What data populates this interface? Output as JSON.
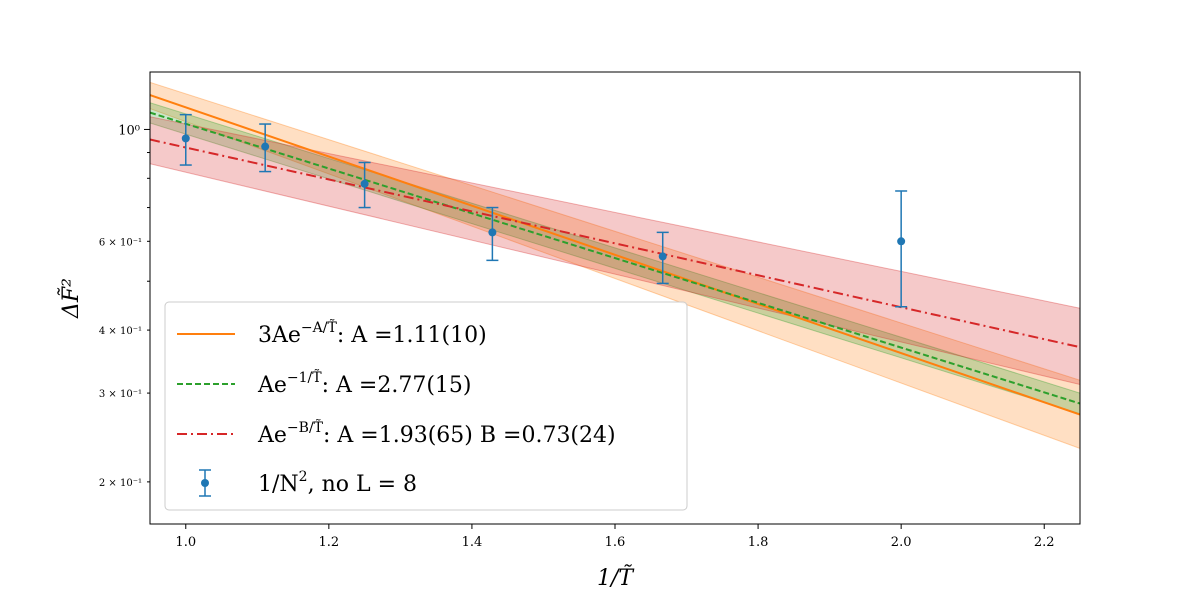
{
  "chart_data": {
    "type": "line",
    "title": "",
    "xlabel": "1/T̃",
    "ylabel": "ΔF̃²",
    "xlim": [
      0.95,
      2.25
    ],
    "ylim": [
      0.165,
      1.3
    ],
    "yscale": "log",
    "x_ticks": [
      {
        "value": 1.0,
        "label": "1.0"
      },
      {
        "value": 1.2,
        "label": "1.2"
      },
      {
        "value": 1.4,
        "label": "1.4"
      },
      {
        "value": 1.6,
        "label": "1.6"
      },
      {
        "value": 1.8,
        "label": "1.8"
      },
      {
        "value": 2.0,
        "label": "2.0"
      },
      {
        "value": 2.2,
        "label": "2.2"
      }
    ],
    "y_major_ticks": [
      {
        "value": 1.0,
        "label": "10⁰"
      }
    ],
    "y_minor_ticks": [
      {
        "value": 0.2,
        "label": "2 × 10⁻¹"
      },
      {
        "value": 0.3,
        "label": "3 × 10⁻¹"
      },
      {
        "value": 0.4,
        "label": "4 × 10⁻¹"
      },
      {
        "value": 0.5,
        "label": ""
      },
      {
        "value": 0.6,
        "label": "6 × 10⁻¹"
      },
      {
        "value": 0.7,
        "label": ""
      },
      {
        "value": 0.8,
        "label": ""
      },
      {
        "value": 0.9,
        "label": ""
      }
    ],
    "series": [
      {
        "name": "fit-3Aexp",
        "label": "3Ae^{−A/T̃}: A =1.11(10)",
        "color": "#ff7f0e",
        "style": "solid",
        "x": [
          0.95,
          2.25
        ],
        "y": [
          1.17,
          0.272
        ],
        "band_lower": [
          1.1,
          0.233
        ],
        "band_upper": [
          1.24,
          0.318
        ]
      },
      {
        "name": "fit-Aexp-1",
        "label": "Ae^{−1/T̃}: A =2.77(15)",
        "color": "#2ca02c",
        "style": "dashed",
        "x": [
          0.95,
          2.25
        ],
        "y": [
          1.08,
          0.286
        ],
        "band_lower": [
          1.03,
          0.273
        ],
        "band_upper": [
          1.13,
          0.3
        ]
      },
      {
        "name": "fit-AexpB",
        "label": "Ae^{−B/T̃}: A =1.93(65) B =0.73(24)",
        "color": "#d62728",
        "style": "dashdot",
        "x": [
          0.95,
          2.25
        ],
        "y": [
          0.955,
          0.37
        ],
        "band_lower": [
          0.855,
          0.312
        ],
        "band_upper": [
          1.06,
          0.442
        ]
      },
      {
        "name": "data-1-over-N2",
        "label": "1/N², no L = 8",
        "color": "#1f77b4",
        "style": "errorbar",
        "x": [
          1.0,
          1.111,
          1.25,
          1.4286,
          1.6667,
          2.0
        ],
        "y": [
          0.96,
          0.925,
          0.78,
          0.625,
          0.56,
          0.6
        ],
        "yerr": [
          0.11,
          0.1,
          0.08,
          0.075,
          0.065,
          0.155
        ]
      }
    ],
    "legend": {
      "position": "lower-left",
      "entries": [
        {
          "prefix": "3Ae",
          "sup": "−A/T̃",
          "rest": ": A =1.11(10)"
        },
        {
          "prefix": "Ae",
          "sup": "−1/T̃",
          "rest": ": A =2.77(15)"
        },
        {
          "prefix": "Ae",
          "sup": "−B/T̃",
          "rest": ": A =1.93(65) B =0.73(24)"
        },
        {
          "prefix": "1/N",
          "sup": "2",
          "rest": ", no L = 8"
        }
      ]
    }
  }
}
